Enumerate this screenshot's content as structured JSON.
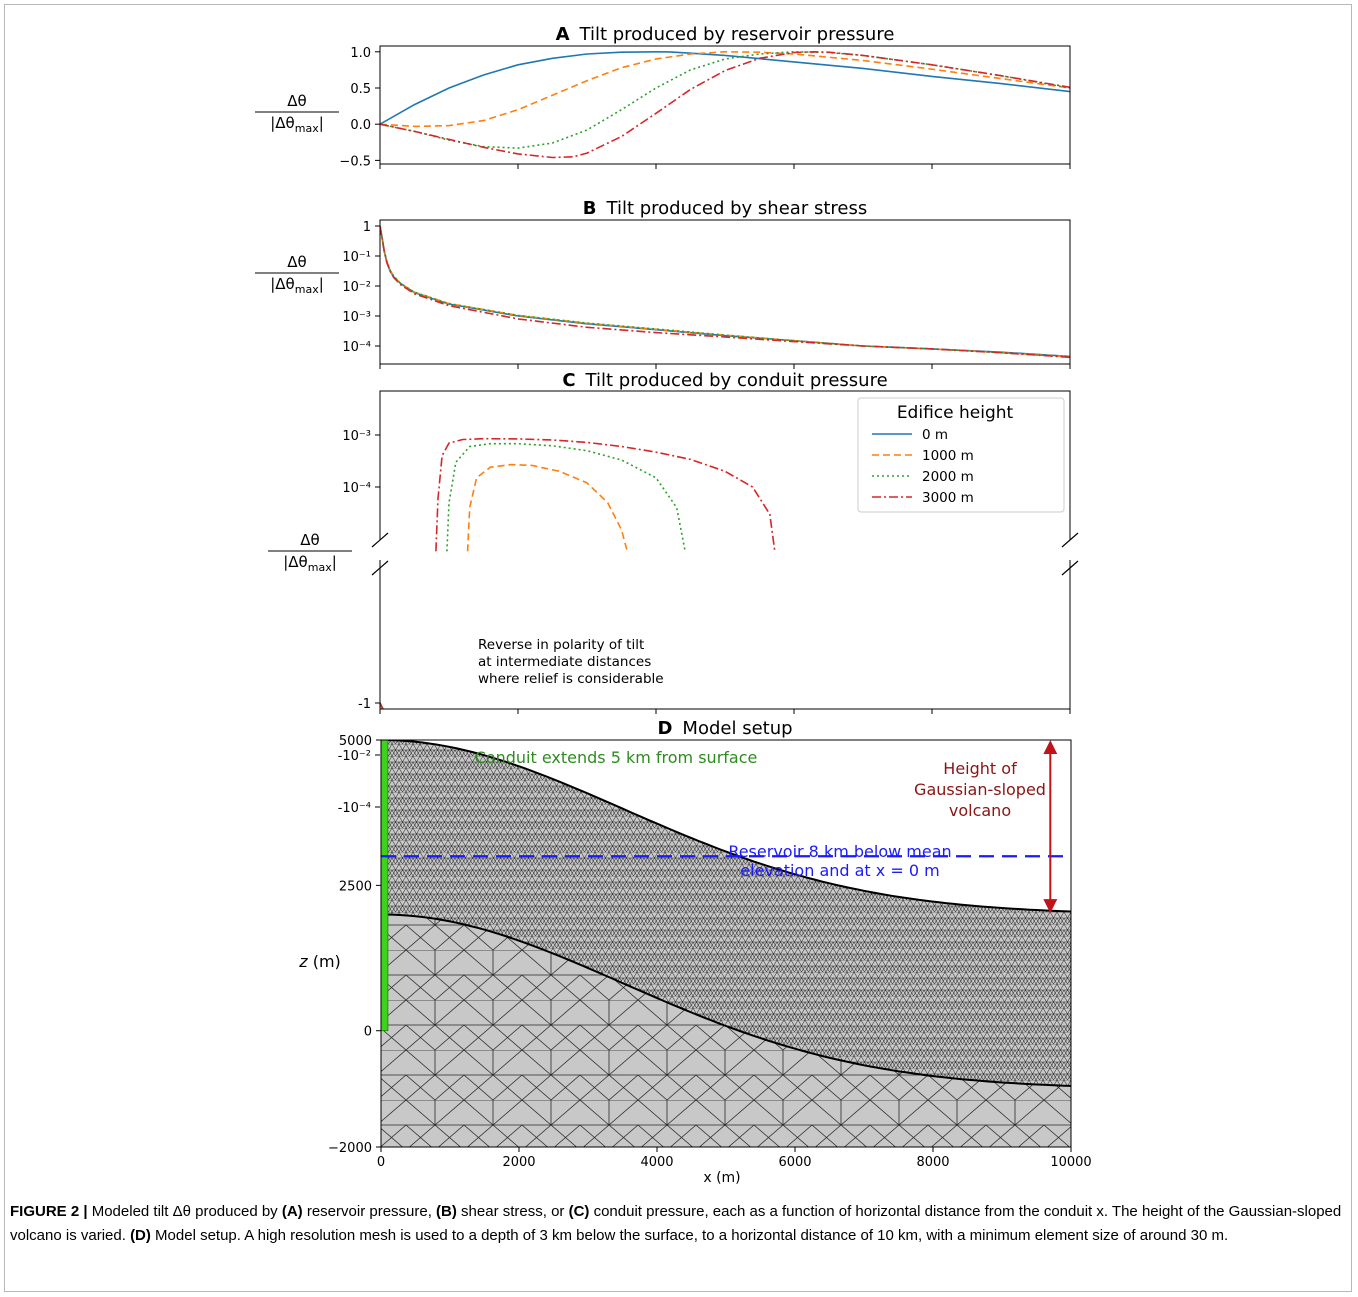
{
  "colors": {
    "h0": "#1f77b4",
    "h1000": "#ff7f0e",
    "h2000": "#2ca02c",
    "h3000": "#d62728",
    "conduit": "#3fd21c",
    "reservoir": "#1a1aff",
    "height_arrow": "#c0141a",
    "conduit_text": "#2e8b1f",
    "mesh_fill": "#c8c8c8"
  },
  "ylabel": {
    "num": "Δθ",
    "den": "|Δθ",
    "den_sub": "max",
    "den_close": "|"
  },
  "chart_data": [
    {
      "panel": "A",
      "type": "line",
      "title": "Tilt produced by reservoir pressure",
      "xlim": [
        0,
        10000
      ],
      "ylim": [
        -0.55,
        1.08
      ],
      "yscale": "linear",
      "yticks": [
        "1.0",
        "0.5",
        "0.0",
        "−0.5"
      ],
      "ytick_values": [
        1.0,
        0.5,
        0.0,
        -0.5
      ],
      "series": [
        {
          "key": "h0",
          "x": [
            0,
            500,
            1000,
            1500,
            2000,
            2500,
            3000,
            3500,
            4000,
            4200,
            4500,
            5000,
            6000,
            7000,
            8000,
            9000,
            10000
          ],
          "y": [
            0,
            0.27,
            0.5,
            0.68,
            0.82,
            0.91,
            0.97,
            0.995,
            1.0,
            0.998,
            0.98,
            0.95,
            0.86,
            0.77,
            0.66,
            0.56,
            0.45
          ]
        },
        {
          "key": "h1000",
          "x": [
            0,
            500,
            1000,
            1500,
            2000,
            2500,
            3000,
            3500,
            4000,
            4500,
            5000,
            5500,
            6000,
            7000,
            8000,
            9000,
            10000
          ],
          "y": [
            0,
            -0.03,
            -0.02,
            0.05,
            0.2,
            0.4,
            0.6,
            0.78,
            0.9,
            0.97,
            1.0,
            0.995,
            0.97,
            0.88,
            0.76,
            0.63,
            0.5
          ]
        },
        {
          "key": "h2000",
          "x": [
            0,
            500,
            1000,
            1500,
            2000,
            2500,
            3000,
            3500,
            4000,
            4500,
            5000,
            5500,
            6000,
            6500,
            7000,
            8000,
            9000,
            10000
          ],
          "y": [
            0,
            -0.1,
            -0.22,
            -0.31,
            -0.33,
            -0.26,
            -0.08,
            0.2,
            0.5,
            0.75,
            0.9,
            0.97,
            1.0,
            0.99,
            0.95,
            0.82,
            0.67,
            0.5
          ]
        },
        {
          "key": "h3000",
          "x": [
            0,
            500,
            1000,
            1500,
            2000,
            2500,
            2800,
            3000,
            3500,
            4000,
            4500,
            5000,
            5500,
            6000,
            6300,
            6500,
            7000,
            8000,
            9000,
            10000
          ],
          "y": [
            0,
            -0.1,
            -0.21,
            -0.32,
            -0.41,
            -0.46,
            -0.45,
            -0.4,
            -0.17,
            0.15,
            0.48,
            0.74,
            0.91,
            0.99,
            1.0,
            0.995,
            0.95,
            0.82,
            0.67,
            0.51
          ]
        }
      ]
    },
    {
      "panel": "B",
      "type": "line",
      "title": "Tilt produced by shear stress",
      "xlim": [
        0,
        10000
      ],
      "ylim": [
        -4.6,
        0.2
      ],
      "yscale": "log",
      "yticks": [
        "1",
        "10⁻¹",
        "10⁻²",
        "10⁻³",
        "10⁻⁴"
      ],
      "ytick_values": [
        1,
        0.1,
        0.01,
        0.001,
        0.0001
      ],
      "series": [
        {
          "key": "h0",
          "x": [
            0,
            30,
            60,
            100,
            150,
            200,
            300,
            500,
            1000,
            2000,
            3000,
            4000,
            5000,
            6000,
            7000,
            8000,
            9000,
            10000
          ],
          "y": [
            1,
            0.4,
            0.15,
            0.06,
            0.03,
            0.02,
            0.012,
            0.006,
            0.0025,
            0.001,
            0.00055,
            0.00035,
            0.00022,
            0.00015,
            0.0001,
            8e-05,
            6.2e-05,
            4.5e-05
          ]
        },
        {
          "key": "h1000",
          "x": [
            0,
            30,
            60,
            100,
            150,
            200,
            300,
            500,
            1000,
            2000,
            3000,
            4000,
            5000,
            6000,
            7000,
            8000,
            9000,
            10000
          ],
          "y": [
            1,
            0.42,
            0.16,
            0.065,
            0.032,
            0.021,
            0.012,
            0.0062,
            0.0026,
            0.00105,
            0.00057,
            0.00036,
            0.00023,
            0.00015,
            0.0001,
            8e-05,
            6e-05,
            4.4e-05
          ]
        },
        {
          "key": "h2000",
          "x": [
            0,
            30,
            60,
            100,
            150,
            200,
            300,
            500,
            1000,
            2000,
            3000,
            4000,
            5000,
            6000,
            7000,
            8000,
            9000,
            10000
          ],
          "y": [
            1,
            0.42,
            0.16,
            0.065,
            0.032,
            0.021,
            0.012,
            0.0062,
            0.0026,
            0.00105,
            0.00058,
            0.00037,
            0.00023,
            0.00015,
            0.0001,
            8e-05,
            6e-05,
            4.3e-05
          ]
        },
        {
          "key": "h3000",
          "x": [
            0,
            30,
            60,
            100,
            150,
            200,
            300,
            500,
            1000,
            2000,
            3000,
            4000,
            5000,
            6000,
            7000,
            8000,
            9000,
            10000
          ],
          "y": [
            1,
            0.4,
            0.15,
            0.06,
            0.03,
            0.019,
            0.011,
            0.0055,
            0.0022,
            0.0008,
            0.00042,
            0.00028,
            0.0002,
            0.00014,
            0.0001,
            8e-05,
            6e-05,
            4.2e-05
          ]
        }
      ]
    },
    {
      "panel": "C",
      "type": "line",
      "title": "Tilt produced by conduit pressure",
      "xlim": [
        0,
        10000
      ],
      "yscale": "symlog",
      "yticks_upper": [
        "10⁻³",
        "10⁻⁴"
      ],
      "ytick_values_upper": [
        0.001,
        0.0001
      ],
      "yticks_lower": [
        "-10⁻⁴",
        "-10⁻²",
        "-1"
      ],
      "ytick_values_lower": [
        -0.0001,
        -0.01,
        -1
      ],
      "annotation": [
        "Reverse in polarity of tilt",
        "at intermediate distances",
        "where relief is considerable"
      ],
      "legend": {
        "title": "Edifice height",
        "location": "upper right",
        "entries": [
          "0 m",
          "1000 m",
          "2000 m",
          "3000 m"
        ]
      },
      "series": [
        {
          "key": "h0",
          "positive": [],
          "negative": {
            "x": [
              0,
              100,
              200,
              400,
              700,
              1000,
              1500,
              2000,
              2500,
              3000,
              4000,
              6000,
              8000,
              10000
            ],
            "y": [
              -1,
              -0.2,
              -0.03,
              -0.01,
              -0.0045,
              -0.0025,
              -0.001,
              -0.0004,
              -0.00015,
              -0.0001,
              -0.0001,
              -0.00011,
              -9.5e-05,
              -8.5e-05
            ]
          }
        },
        {
          "key": "h1000",
          "positive": {
            "x": [
              1270,
              1300,
              1400,
              1600,
              1900,
              2200,
              2600,
              3000,
              3300,
              3500,
              3580
            ],
            "y": [
              5.8e-06,
              4e-05,
              0.00015,
              0.00024,
              0.00027,
              0.00026,
              0.0002,
              0.00012,
              5e-05,
              1.5e-05,
              6e-06
            ]
          },
          "negative": {
            "x": [
              0,
              100,
              200,
              400,
              700,
              1000,
              1150,
              1250,
              1280,
              3620,
              3650,
              3800,
              4000,
              4500,
              5000,
              6000,
              8000,
              10000
            ],
            "y": [
              -1,
              -0.25,
              -0.035,
              -0.012,
              -0.0055,
              -0.002,
              -0.0008,
              -5e-05,
              -5.8e-06,
              -5.8e-06,
              -4e-05,
              -8e-05,
              -0.0001,
              -0.000105,
              -0.00011,
              -0.00012,
              -0.000125,
              -0.00013
            ]
          }
        },
        {
          "key": "h2000",
          "positive": {
            "x": [
              970,
              1000,
              1100,
              1300,
              1600,
              2000,
              2500,
              3000,
              3500,
              4000,
              4300,
              4420
            ],
            "y": [
              5.8e-06,
              5e-05,
              0.0003,
              0.0006,
              0.00068,
              0.00068,
              0.00062,
              0.0005,
              0.00033,
              0.00015,
              4e-05,
              6e-06
            ]
          },
          "negative": {
            "x": [
              0,
              100,
              200,
              400,
              600,
              800,
              900,
              960,
              980,
              4470,
              4500,
              4700,
              5000,
              5500,
              6000,
              8000,
              10000
            ],
            "y": [
              -1,
              -0.25,
              -0.04,
              -0.015,
              -0.006,
              -0.002,
              -0.0006,
              -5e-05,
              -5.8e-06,
              -5.8e-06,
              -4e-05,
              -8e-05,
              -0.0001,
              -0.000105,
              -0.000108,
              -0.00011,
              -0.00011
            ]
          }
        },
        {
          "key": "h3000",
          "positive": {
            "x": [
              810,
              840,
              900,
              1000,
              1200,
              1500,
              2000,
              2500,
              3000,
              3500,
              4000,
              4500,
              5000,
              5400,
              5650,
              5720
            ],
            "y": [
              5.8e-06,
              6e-05,
              0.0004,
              0.0007,
              0.00082,
              0.00085,
              0.00084,
              0.0008,
              0.00072,
              0.0006,
              0.00047,
              0.00034,
              0.0002,
              0.0001,
              3e-05,
              6e-06
            ]
          },
          "negative": {
            "x": [
              0,
              100,
              200,
              400,
              600,
              700,
              780,
              800,
              810,
              5880,
              5900,
              5950,
              6100,
              6500,
              7000,
              8000,
              9000,
              10000
            ],
            "y": [
              -1,
              -0.3,
              -0.05,
              -0.02,
              -0.008,
              -0.003,
              -0.0008,
              -5e-05,
              -5.8e-06,
              -5.8e-06,
              -9e-06,
              -1.5e-05,
              -2e-05,
              -2.2e-05,
              -2.1e-05,
              -1.9e-05,
              -1.7e-05,
              -1.5e-05
            ]
          }
        }
      ]
    },
    {
      "panel": "D",
      "type": "diagram",
      "title": "Model setup",
      "xlabel": "x (m)",
      "ylabel_var": "z",
      "ylabel_unit": " (m)",
      "xlim": [
        0,
        10000
      ],
      "ylim": [
        -2000,
        5000
      ],
      "xticks": [
        "0",
        "2000",
        "4000",
        "6000",
        "8000",
        "10000"
      ],
      "xtick_values": [
        0,
        2000,
        4000,
        6000,
        8000,
        10000
      ],
      "yticks": [
        "5000",
        "2500",
        "0",
        "−2000"
      ],
      "ytick_values": [
        5000,
        2500,
        0,
        -2000
      ],
      "conduit_label": "Conduit extends 5 km from surface",
      "reservoir_label": [
        "Reservoir 8 km below mean",
        "elevation and at x = 0 m"
      ],
      "height_label": [
        "Height of",
        "Gaussian-sloped",
        "volcano"
      ],
      "surface_top_z": 5000,
      "surface_bottom_z": 2000,
      "reservoir_z": 3000,
      "mesh_offset": -3000,
      "gaussian_sigma_m": 3500
    }
  ],
  "panel_titles_letters": [
    "A",
    "B",
    "C",
    "D"
  ],
  "caption": {
    "label": "FIGURE 2 |",
    "p1": " Modeled tilt Δθ produced by ",
    "a": "(A)",
    "p2": " reservoir pressure, ",
    "b": "(B)",
    "p3": " shear stress, or ",
    "c": "(C)",
    "p4": " conduit pressure, each as a function of horizontal distance from the conduit x. The height of the Gaussian-sloped volcano is varied. ",
    "d": "(D)",
    "p5": " Model setup. A high resolution mesh is used to a depth of 3 km below the surface, to a horizontal distance of 10 km, with a minimum element size of around 30 m."
  }
}
